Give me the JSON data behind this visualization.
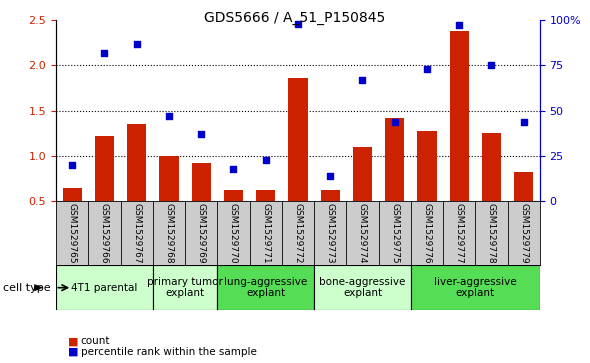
{
  "title": "GDS5666 / A_51_P150845",
  "samples": [
    "GSM1529765",
    "GSM1529766",
    "GSM1529767",
    "GSM1529768",
    "GSM1529769",
    "GSM1529770",
    "GSM1529771",
    "GSM1529772",
    "GSM1529773",
    "GSM1529774",
    "GSM1529775",
    "GSM1529776",
    "GSM1529777",
    "GSM1529778",
    "GSM1529779"
  ],
  "bar_values": [
    0.65,
    1.22,
    1.35,
    1.0,
    0.92,
    0.63,
    0.63,
    1.86,
    0.63,
    1.1,
    1.42,
    1.28,
    2.38,
    1.25,
    0.82
  ],
  "dot_percentile": [
    20,
    82,
    87,
    47,
    37,
    18,
    23,
    98,
    14,
    67,
    44,
    73,
    97,
    75,
    44
  ],
  "bar_color": "#cc2200",
  "dot_color": "#0000cc",
  "ylim_left": [
    0.5,
    2.5
  ],
  "ylim_right": [
    0,
    100
  ],
  "yticks_left": [
    0.5,
    1.0,
    1.5,
    2.0,
    2.5
  ],
  "yticks_right": [
    0,
    25,
    50,
    75,
    100
  ],
  "ytick_labels_right": [
    "0",
    "25",
    "50",
    "75",
    "100%"
  ],
  "cell_groups": [
    {
      "label": "4T1 parental",
      "indices": [
        0,
        1,
        2
      ],
      "color": "#ccffcc"
    },
    {
      "label": "primary tumor\nexplant",
      "indices": [
        3,
        4
      ],
      "color": "#ccffcc"
    },
    {
      "label": "lung-aggressive\nexplant",
      "indices": [
        5,
        6,
        7
      ],
      "color": "#55dd55"
    },
    {
      "label": "bone-aggressive\nexplant",
      "indices": [
        8,
        9,
        10
      ],
      "color": "#ccffcc"
    },
    {
      "label": "liver-aggressive\nexplant",
      "indices": [
        11,
        12,
        13,
        14
      ],
      "color": "#55dd55"
    }
  ],
  "sample_bg_color": "#cccccc",
  "cell_type_label": "cell type",
  "legend_bar_label": "count",
  "legend_dot_label": "percentile rank within the sample",
  "background_color": "#ffffff",
  "plot_bg_color": "#ffffff",
  "tick_label_color_left": "#cc2200",
  "tick_label_color_right": "#0000cc"
}
